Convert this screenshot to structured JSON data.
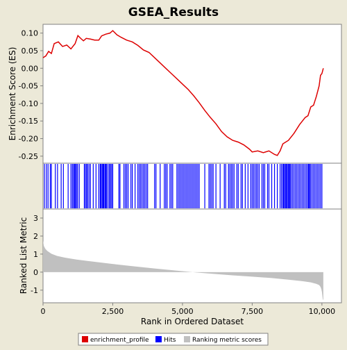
{
  "chart_data": {
    "title": "GSEA_Results",
    "type": "line",
    "xlabel": "Rank in Ordered Dataset",
    "xlim": [
      0,
      10700
    ],
    "x_ticks": [
      0,
      2500,
      5000,
      7500,
      10000
    ],
    "x_tick_labels": [
      "0",
      "2,500",
      "5,000",
      "7,500",
      "10,000"
    ],
    "panels": {
      "enrichment": {
        "ylabel": "Enrichment Score (ES)",
        "ylim": [
          -0.27,
          0.125
        ],
        "y_ticks": [
          0.1,
          0.05,
          0.0,
          -0.05,
          -0.1,
          -0.15,
          -0.2,
          -0.25
        ],
        "y_tick_labels": [
          "0.10",
          "0.05",
          "0.00",
          "-0.05",
          "-0.10",
          "-0.15",
          "-0.20",
          "-0.25"
        ],
        "series": [
          {
            "name": "enrichment_profile",
            "color": "#dd0000",
            "points": [
              [
                0,
                0.03
              ],
              [
                100,
                0.035
              ],
              [
                200,
                0.048
              ],
              [
                300,
                0.042
              ],
              [
                400,
                0.07
              ],
              [
                550,
                0.075
              ],
              [
                700,
                0.062
              ],
              [
                850,
                0.066
              ],
              [
                1000,
                0.055
              ],
              [
                1150,
                0.07
              ],
              [
                1250,
                0.093
              ],
              [
                1350,
                0.085
              ],
              [
                1450,
                0.078
              ],
              [
                1550,
                0.085
              ],
              [
                1700,
                0.083
              ],
              [
                1850,
                0.08
              ],
              [
                2000,
                0.08
              ],
              [
                2100,
                0.092
              ],
              [
                2250,
                0.097
              ],
              [
                2400,
                0.1
              ],
              [
                2500,
                0.107
              ],
              [
                2650,
                0.095
              ],
              [
                2800,
                0.088
              ],
              [
                3000,
                0.08
              ],
              [
                3200,
                0.075
              ],
              [
                3400,
                0.065
              ],
              [
                3600,
                0.052
              ],
              [
                3800,
                0.045
              ],
              [
                4000,
                0.03
              ],
              [
                4200,
                0.015
              ],
              [
                4400,
                0.0
              ],
              [
                4600,
                -0.015
              ],
              [
                4800,
                -0.03
              ],
              [
                5000,
                -0.045
              ],
              [
                5200,
                -0.06
              ],
              [
                5400,
                -0.078
              ],
              [
                5600,
                -0.098
              ],
              [
                5800,
                -0.12
              ],
              [
                6000,
                -0.14
              ],
              [
                6200,
                -0.158
              ],
              [
                6400,
                -0.18
              ],
              [
                6600,
                -0.195
              ],
              [
                6800,
                -0.205
              ],
              [
                7000,
                -0.21
              ],
              [
                7200,
                -0.218
              ],
              [
                7400,
                -0.23
              ],
              [
                7500,
                -0.238
              ],
              [
                7700,
                -0.235
              ],
              [
                7900,
                -0.24
              ],
              [
                8100,
                -0.235
              ],
              [
                8300,
                -0.245
              ],
              [
                8400,
                -0.248
              ],
              [
                8500,
                -0.235
              ],
              [
                8600,
                -0.215
              ],
              [
                8800,
                -0.205
              ],
              [
                9000,
                -0.185
              ],
              [
                9200,
                -0.16
              ],
              [
                9400,
                -0.14
              ],
              [
                9500,
                -0.135
              ],
              [
                9600,
                -0.11
              ],
              [
                9700,
                -0.105
              ],
              [
                9800,
                -0.08
              ],
              [
                9900,
                -0.05
              ],
              [
                9950,
                -0.02
              ],
              [
                10000,
                -0.015
              ],
              [
                10050,
                0.0
              ]
            ]
          }
        ]
      },
      "hits": {
        "color": "#0000ff",
        "positions": [
          50,
          120,
          180,
          260,
          300,
          440,
          520,
          650,
          730,
          900,
          1000,
          1050,
          1090,
          1130,
          1160,
          1200,
          1240,
          1300,
          1480,
          1520,
          1560,
          1600,
          1650,
          1700,
          1800,
          1900,
          2000,
          2050,
          2080,
          2120,
          2150,
          2180,
          2220,
          2250,
          2280,
          2330,
          2380,
          2420,
          2460,
          2500,
          2720,
          2760,
          2900,
          2950,
          3000,
          3050,
          3150,
          3200,
          3300,
          3400,
          3450,
          3500,
          3550,
          3600,
          3650,
          3700,
          3750,
          4000,
          4050,
          4200,
          4350,
          4400,
          4450,
          4550,
          4600,
          4650,
          4800,
          4850,
          4900,
          4950,
          5000,
          5050,
          5100,
          5150,
          5200,
          5250,
          5300,
          5350,
          5400,
          5450,
          5500,
          5550,
          5600,
          5800,
          5950,
          6000,
          6050,
          6100,
          6200,
          6350,
          6500,
          6550,
          6650,
          6700,
          6750,
          6800,
          6850,
          6950,
          7000,
          7100,
          7150,
          7250,
          7350,
          7450,
          7500,
          7550,
          7600,
          7650,
          7700,
          7750,
          7850,
          7900,
          7950,
          8050,
          8100,
          8200,
          8300,
          8400,
          8500,
          8550,
          8600,
          8630,
          8660,
          8700,
          8730,
          8760,
          8800,
          8830,
          8860,
          8900,
          8950,
          9000,
          9050,
          9100,
          9150,
          9200,
          9250,
          9300,
          9350,
          9400,
          9450,
          9500,
          9530,
          9560,
          9600,
          9650,
          9700,
          9750,
          9800,
          9850,
          9900,
          9950,
          10000
        ]
      },
      "metric": {
        "ylabel": "Ranked List Metric",
        "ylim": [
          -1.7,
          3.5
        ],
        "y_ticks": [
          3,
          2,
          1,
          0,
          -1
        ],
        "y_tick_labels": [
          "3",
          "2",
          "1",
          "0",
          "-1"
        ],
        "fill_color": "#c0c0c0",
        "curve": [
          [
            0,
            1.75
          ],
          [
            30,
            1.45
          ],
          [
            80,
            1.3
          ],
          [
            150,
            1.18
          ],
          [
            300,
            1.02
          ],
          [
            500,
            0.9
          ],
          [
            800,
            0.8
          ],
          [
            1200,
            0.7
          ],
          [
            1800,
            0.58
          ],
          [
            2500,
            0.45
          ],
          [
            3200,
            0.33
          ],
          [
            4000,
            0.2
          ],
          [
            4800,
            0.08
          ],
          [
            5500,
            -0.02
          ],
          [
            6000,
            -0.08
          ],
          [
            6800,
            -0.18
          ],
          [
            7500,
            -0.25
          ],
          [
            8200,
            -0.33
          ],
          [
            8800,
            -0.42
          ],
          [
            9300,
            -0.5
          ],
          [
            9600,
            -0.57
          ],
          [
            9800,
            -0.65
          ],
          [
            9900,
            -0.72
          ],
          [
            9950,
            -0.82
          ],
          [
            9980,
            -0.95
          ],
          [
            10000,
            -1.1
          ],
          [
            10030,
            -1.5
          ],
          [
            10050,
            -1.55
          ]
        ]
      }
    },
    "legend": {
      "position": "bottom",
      "entries": [
        {
          "label": "enrichment_profile",
          "color": "#dd0000"
        },
        {
          "label": "Hits",
          "color": "#0000ff"
        },
        {
          "label": "Ranking metric scores",
          "color": "#c0c0c0"
        }
      ]
    }
  }
}
